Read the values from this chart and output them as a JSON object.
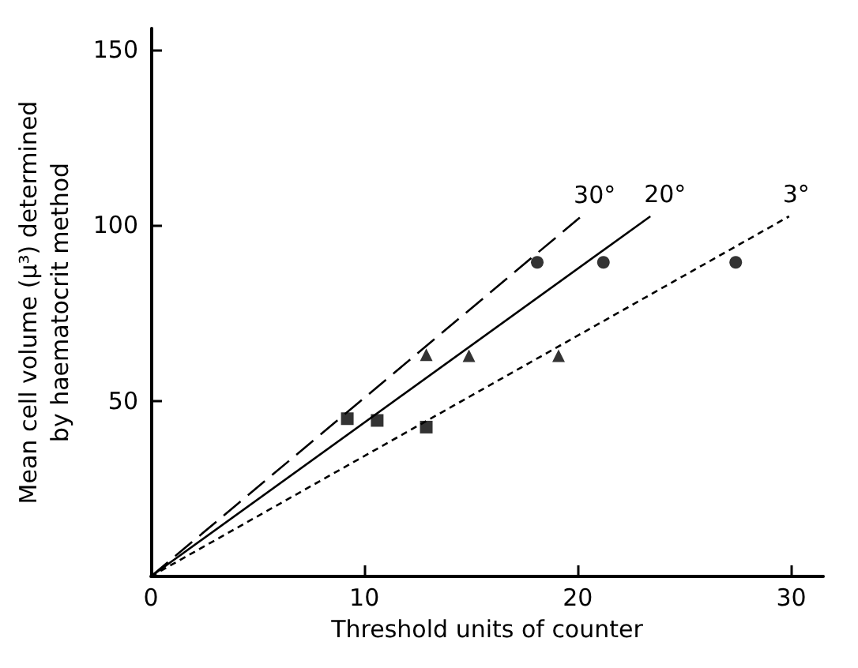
{
  "chart_data": {
    "type": "line",
    "xlabel": "Threshold units of counter",
    "ylabel": "Mean cell volume (μ³) determined\nby haematocrit method",
    "xlim": [
      0,
      31.5
    ],
    "xticks": [
      0,
      10,
      20,
      30
    ],
    "ylim": [
      0,
      156
    ],
    "yticks": [
      50,
      100,
      150
    ],
    "grid": false,
    "legend": false,
    "series": [
      {
        "name": "30°",
        "color": "#000000",
        "line_style": "dashed",
        "marker": "none",
        "x": [
          0,
          20.1
        ],
        "values": [
          0,
          102.2
        ]
      },
      {
        "name": "20°",
        "color": "#000000",
        "line_style": "solid",
        "marker": "none",
        "x": [
          0,
          23.4
        ],
        "values": [
          0,
          102.5
        ]
      },
      {
        "name": "3°",
        "color": "#000000",
        "line_style": "dotted",
        "marker": "none",
        "x": [
          0,
          29.9
        ],
        "values": [
          0,
          102.5
        ]
      },
      {
        "type": "scatter",
        "color": "#000000",
        "marker": "square",
        "x": [
          9.2,
          10.6,
          12.9
        ],
        "values": [
          44.9,
          44.4,
          42.5
        ]
      },
      {
        "type": "scatter",
        "color": "#000000",
        "marker": "triangle",
        "x": [
          12.9,
          14.9,
          19.1
        ],
        "values": [
          63.1,
          62.8,
          62.8
        ]
      },
      {
        "type": "scatter",
        "color": "#000000",
        "marker": "circle",
        "x": [
          18.1,
          21.2,
          27.4
        ],
        "values": [
          89.4,
          89.4,
          89.4
        ]
      }
    ]
  }
}
